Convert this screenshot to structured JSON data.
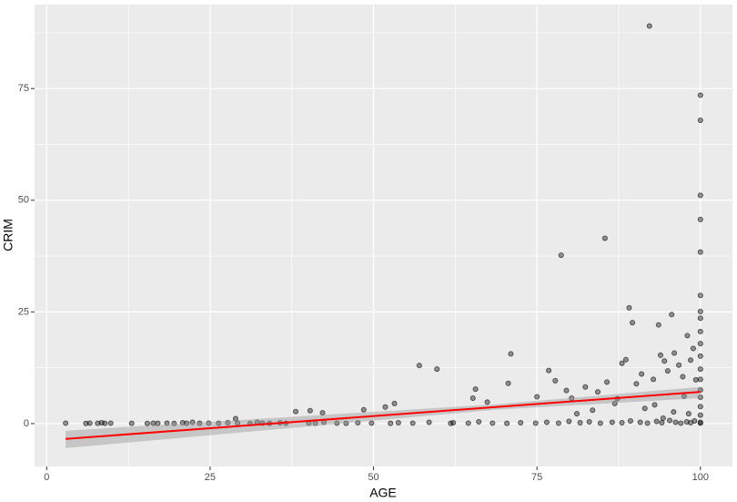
{
  "chart_data": {
    "type": "scatter",
    "x_label": "AGE",
    "y_label": "CRIM",
    "xlim": [
      -1.85,
      104.9
    ],
    "ylim": [
      -9.6,
      93.8
    ],
    "xticks": [
      0,
      25,
      50,
      75,
      100
    ],
    "yticks": [
      0,
      25,
      50,
      75
    ],
    "x_minor_grid": [
      12.5,
      37.5,
      62.5,
      87.5
    ],
    "y_minor_grid": [
      12.5,
      37.5,
      62.5,
      87.5
    ],
    "grid": true,
    "background": "#EBEBEB",
    "x": [
      2.9,
      6.0,
      6.6,
      7.8,
      8.4,
      8.9,
      9.8,
      13.0,
      15.4,
      16.3,
      17.0,
      18.4,
      19.5,
      20.8,
      21.4,
      22.3,
      23.4,
      24.8,
      26.3,
      27.7,
      29.2,
      31.1,
      32.2,
      33.0,
      34.1,
      35.7,
      36.6,
      40.1,
      41.1,
      42.4,
      44.4,
      45.8,
      47.6,
      49.7,
      52.6,
      53.8,
      56.0,
      58.5,
      61.8,
      62.2,
      64.5,
      66.1,
      68.2,
      70.4,
      72.5,
      74.8,
      76.5,
      78.3,
      79.9,
      81.6,
      83.0,
      84.7,
      86.5,
      88.0,
      89.3,
      90.8,
      91.9,
      93.3,
      94.1,
      95.3,
      96.2,
      97.0,
      97.9,
      98.5,
      99.1,
      100,
      100,
      28.9,
      38.1,
      40.3,
      42.2,
      48.5,
      51.8,
      53.2,
      57.0,
      59.7,
      65.2,
      65.6,
      67.4,
      70.6,
      71.0,
      75.0,
      76.8,
      77.8,
      78.7,
      79.5,
      80.3,
      82.4,
      84.3,
      85.4,
      85.7,
      87.3,
      88.0,
      88.6,
      89.1,
      89.6,
      90.2,
      91.0,
      92.2,
      92.8,
      93.6,
      93.9,
      94.5,
      95.0,
      95.6,
      96.0,
      96.7,
      97.3,
      98.0,
      98.5,
      98.9,
      99.3,
      100,
      100,
      100,
      100,
      100,
      100,
      100,
      100,
      100,
      100,
      100,
      100,
      100,
      100,
      100,
      100,
      100,
      93.0,
      95.9,
      97.5,
      91.5,
      86.9,
      83.5,
      81.1,
      94.3,
      98.2
    ],
    "series": [
      {
        "color": "#000000",
        "values": [
          0.1,
          0.03,
          0.1,
          0.05,
          0.2,
          0.05,
          0.1,
          0.06,
          0.04,
          0.1,
          0.05,
          0.08,
          0.03,
          0.2,
          0.06,
          0.3,
          0.05,
          0.1,
          0.05,
          0.2,
          0.1,
          0.04,
          0.3,
          0.1,
          0.05,
          0.2,
          0.08,
          0.1,
          0.05,
          0.3,
          0.1,
          0.06,
          0.2,
          0.1,
          0.05,
          0.2,
          0.1,
          0.3,
          0.05,
          0.2,
          0.1,
          0.4,
          0.1,
          0.05,
          0.2,
          0.1,
          0.3,
          0.1,
          0.5,
          0.2,
          0.4,
          0.1,
          0.3,
          0.2,
          0.6,
          0.3,
          0.1,
          0.5,
          0.2,
          0.7,
          0.3,
          0.1,
          0.4,
          0.2,
          0.6,
          0.3,
          0.1,
          1.1,
          2.7,
          2.9,
          2.4,
          3.1,
          3.7,
          4.5,
          13.0,
          12.2,
          5.7,
          7.7,
          4.8,
          9.0,
          15.6,
          6.0,
          11.9,
          9.6,
          37.7,
          7.4,
          5.7,
          8.2,
          7.1,
          41.5,
          9.3,
          5.6,
          13.5,
          14.3,
          25.9,
          22.6,
          8.9,
          11.1,
          89.0,
          9.9,
          22.1,
          15.3,
          14.0,
          11.8,
          24.4,
          15.8,
          13.1,
          10.5,
          19.7,
          14.2,
          16.8,
          9.8,
          73.5,
          67.9,
          51.1,
          45.7,
          38.4,
          28.7,
          25.1,
          23.6,
          20.6,
          17.9,
          15.1,
          12.2,
          9.9,
          7.5,
          5.9,
          3.8,
          1.9,
          4.2,
          2.6,
          6.1,
          3.4,
          4.5,
          3.0,
          2.2,
          1.2,
          2.2
        ]
      }
    ],
    "fit": {
      "color": "#FF0000",
      "x": [
        2.9,
        100
      ],
      "values": [
        -3.43,
        7.1
      ]
    },
    "band": {
      "color": "#999999",
      "x": [
        2.9,
        68.6,
        100
      ],
      "lower": [
        -5.5,
        3.1,
        5.7
      ],
      "upper": [
        -1.6,
        4.3,
        8.2
      ]
    }
  }
}
